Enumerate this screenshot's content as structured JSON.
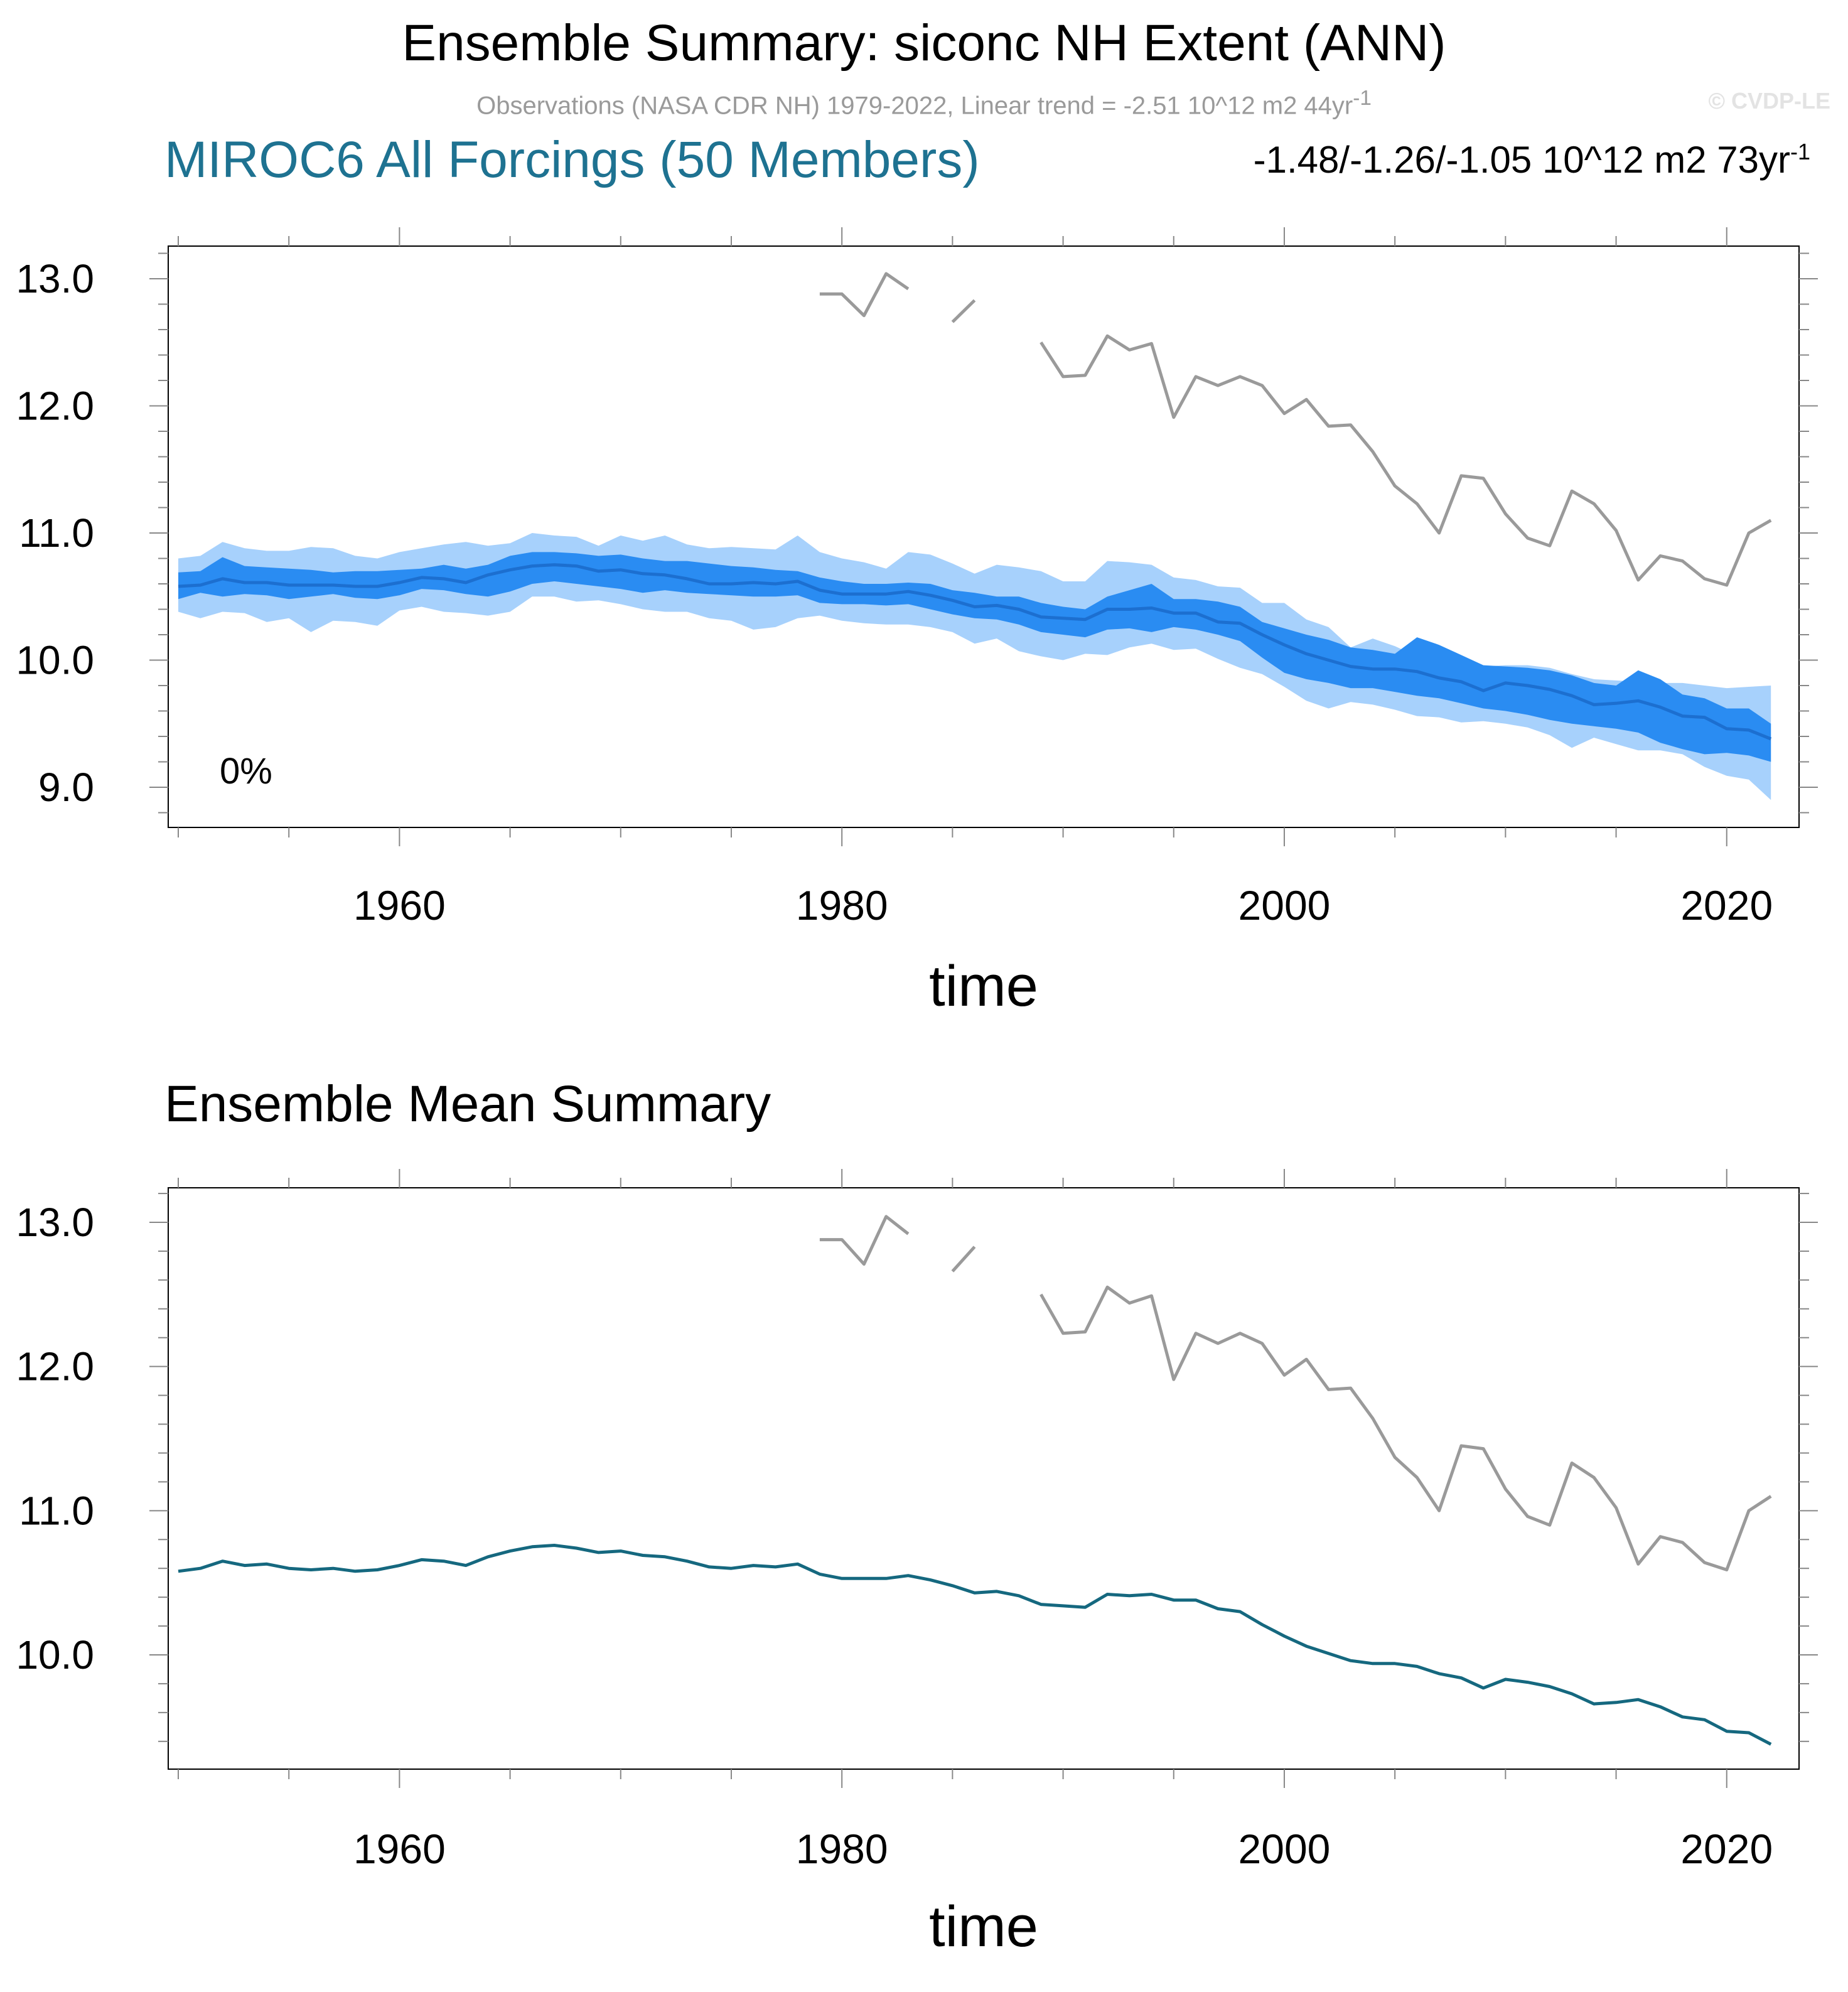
{
  "header": {
    "title": "Ensemble Summary: siconc NH Extent (ANN)",
    "observations_text": "Observations (NASA CDR NH) 1979-2022, Linear trend = -2.51 10^12 m2 44yr",
    "observations_sup": "-1",
    "copyright": "© CVDP-LE",
    "model_title": "MIROC6 All Forcings (50 Members)",
    "trend_text": "-1.48/-1.26/-1.05 10^12 m2 73yr",
    "trend_sup": "-1"
  },
  "colors": {
    "outer_band": "#a7d1fc",
    "inner_band": "#2a8cf2",
    "median_line": "#1c6fd0",
    "mean_line": "#15687f",
    "obs_line": "#9a9a9a",
    "model_title": "#1e7291"
  },
  "chart_data": [
    {
      "type": "area",
      "title": "Ensemble Summary",
      "xlabel": "time",
      "ylabel": "",
      "xlim": [
        1950,
        2022
      ],
      "ylim": [
        8.7,
        13.3
      ],
      "x_ticks": [
        1960,
        1980,
        2000,
        2020
      ],
      "y_ticks": [
        9.0,
        10.0,
        11.0,
        12.0,
        13.0
      ],
      "y_tick_labels": [
        "9.0",
        "10.0",
        "11.0",
        "12.0",
        "13.0"
      ],
      "annotation": "0%",
      "series": [
        {
          "name": "ensemble 5-95% range",
          "kind": "band-outer",
          "x_start": 1950,
          "upper": [
            10.8,
            10.82,
            10.93,
            10.88,
            10.86,
            10.86,
            10.89,
            10.88,
            10.82,
            10.8,
            10.85,
            10.88,
            10.91,
            10.93,
            10.9,
            10.92,
            11.0,
            10.98,
            10.97,
            10.9,
            10.98,
            10.94,
            10.98,
            10.91,
            10.88,
            10.89,
            10.88,
            10.87,
            10.98,
            10.85,
            10.8,
            10.77,
            10.72,
            10.85,
            10.83,
            10.76,
            10.68,
            10.75,
            10.73,
            10.7,
            10.62,
            10.62,
            10.78,
            10.77,
            10.75,
            10.65,
            10.63,
            10.58,
            10.57,
            10.45,
            10.45,
            10.32,
            10.26,
            10.1,
            10.17,
            10.11,
            10.03,
            10.0,
            9.98,
            9.95,
            9.96,
            9.96,
            9.94,
            9.89,
            9.85,
            9.84,
            9.83,
            9.82,
            9.82,
            9.8,
            9.78,
            9.79,
            9.8
          ],
          "lower": [
            10.38,
            10.33,
            10.38,
            10.37,
            10.3,
            10.33,
            10.22,
            10.31,
            10.3,
            10.27,
            10.39,
            10.42,
            10.38,
            10.37,
            10.35,
            10.38,
            10.5,
            10.5,
            10.46,
            10.47,
            10.44,
            10.4,
            10.38,
            10.38,
            10.33,
            10.31,
            10.24,
            10.26,
            10.33,
            10.35,
            10.31,
            10.29,
            10.28,
            10.28,
            10.26,
            10.22,
            10.13,
            10.17,
            10.07,
            10.03,
            10.0,
            10.05,
            10.04,
            10.1,
            10.13,
            10.08,
            10.09,
            10.01,
            9.94,
            9.89,
            9.79,
            9.68,
            9.62,
            9.67,
            9.65,
            9.61,
            9.56,
            9.55,
            9.51,
            9.52,
            9.5,
            9.47,
            9.41,
            9.31,
            9.39,
            9.34,
            9.29,
            9.29,
            9.26,
            9.16,
            9.09,
            9.06,
            8.9
          ]
        },
        {
          "name": "ensemble 25-75% range",
          "kind": "band-inner",
          "x_start": 1950,
          "upper": [
            10.69,
            10.7,
            10.81,
            10.74,
            10.73,
            10.72,
            10.71,
            10.69,
            10.7,
            10.7,
            10.71,
            10.72,
            10.75,
            10.72,
            10.75,
            10.82,
            10.85,
            10.85,
            10.84,
            10.82,
            10.83,
            10.8,
            10.78,
            10.78,
            10.76,
            10.74,
            10.73,
            10.71,
            10.7,
            10.65,
            10.62,
            10.6,
            10.6,
            10.61,
            10.6,
            10.55,
            10.53,
            10.5,
            10.5,
            10.45,
            10.42,
            10.4,
            10.5,
            10.55,
            10.6,
            10.48,
            10.48,
            10.46,
            10.42,
            10.3,
            10.25,
            10.2,
            10.16,
            10.1,
            10.08,
            10.05,
            10.18,
            10.12,
            10.04,
            9.96,
            9.95,
            9.94,
            9.92,
            9.88,
            9.82,
            9.8,
            9.92,
            9.85,
            9.73,
            9.7,
            9.62,
            9.62,
            9.5
          ],
          "lower": [
            10.48,
            10.53,
            10.5,
            10.52,
            10.51,
            10.48,
            10.5,
            10.52,
            10.49,
            10.48,
            10.51,
            10.56,
            10.55,
            10.52,
            10.5,
            10.54,
            10.6,
            10.62,
            10.6,
            10.58,
            10.56,
            10.53,
            10.55,
            10.53,
            10.52,
            10.51,
            10.5,
            10.5,
            10.51,
            10.45,
            10.44,
            10.44,
            10.43,
            10.44,
            10.4,
            10.36,
            10.33,
            10.32,
            10.28,
            10.22,
            10.2,
            10.18,
            10.24,
            10.25,
            10.22,
            10.26,
            10.24,
            10.2,
            10.15,
            10.02,
            9.9,
            9.85,
            9.82,
            9.78,
            9.78,
            9.75,
            9.72,
            9.7,
            9.66,
            9.62,
            9.6,
            9.57,
            9.53,
            9.5,
            9.48,
            9.46,
            9.43,
            9.35,
            9.3,
            9.26,
            9.27,
            9.25,
            9.2
          ]
        },
        {
          "name": "ensemble median",
          "kind": "line",
          "x_start": 1950,
          "values": [
            10.58,
            10.59,
            10.64,
            10.61,
            10.61,
            10.59,
            10.59,
            10.59,
            10.58,
            10.58,
            10.61,
            10.65,
            10.64,
            10.61,
            10.67,
            10.71,
            10.74,
            10.75,
            10.74,
            10.7,
            10.71,
            10.68,
            10.67,
            10.64,
            10.6,
            10.6,
            10.61,
            10.6,
            10.62,
            10.55,
            10.52,
            10.52,
            10.52,
            10.54,
            10.51,
            10.47,
            10.42,
            10.43,
            10.4,
            10.34,
            10.33,
            10.32,
            10.4,
            10.4,
            10.41,
            10.37,
            10.37,
            10.3,
            10.29,
            10.2,
            10.12,
            10.05,
            10.0,
            9.95,
            9.93,
            9.93,
            9.91,
            9.86,
            9.83,
            9.76,
            9.82,
            9.8,
            9.77,
            9.72,
            9.65,
            9.66,
            9.68,
            9.63,
            9.56,
            9.55,
            9.46,
            9.45,
            9.38
          ]
        },
        {
          "name": "Observations (NASA CDR NH)",
          "kind": "obs",
          "x": [
            1979,
            1980,
            1981,
            1982,
            1983,
            1984,
            1985,
            1986,
            1987,
            1988,
            1989,
            1990,
            1991,
            1992,
            1993,
            1994,
            1995,
            1996,
            1997,
            1998,
            1999,
            2000,
            2001,
            2002,
            2003,
            2004,
            2005,
            2006,
            2007,
            2008,
            2009,
            2010,
            2011,
            2012,
            2013,
            2014,
            2015,
            2016,
            2017,
            2018,
            2019,
            2020,
            2021,
            2022
          ],
          "values": [
            12.88,
            12.88,
            12.71,
            13.04,
            12.92,
            null,
            12.66,
            12.83,
            null,
            null,
            12.5,
            12.23,
            12.24,
            12.55,
            12.44,
            12.49,
            11.91,
            12.23,
            12.16,
            12.23,
            12.16,
            11.94,
            12.05,
            11.84,
            11.85,
            11.64,
            11.37,
            11.23,
            11.0,
            11.45,
            11.43,
            11.15,
            10.96,
            10.9,
            11.33,
            11.23,
            11.02,
            10.63,
            10.82,
            10.78,
            10.64,
            10.59,
            11.0,
            11.1
          ]
        }
      ]
    },
    {
      "type": "line",
      "title": "Ensemble Mean Summary",
      "xlabel": "time",
      "ylabel": "",
      "xlim": [
        1950,
        2022
      ],
      "ylim": [
        9.2,
        13.2
      ],
      "x_ticks": [
        1960,
        1980,
        2000,
        2020
      ],
      "y_ticks": [
        10.0,
        11.0,
        12.0,
        13.0
      ],
      "y_tick_labels": [
        "10.0",
        "11.0",
        "12.0",
        "13.0"
      ],
      "series": [
        {
          "name": "ensemble mean",
          "kind": "mean",
          "x_start": 1950,
          "values": [
            10.58,
            10.6,
            10.65,
            10.62,
            10.63,
            10.6,
            10.59,
            10.6,
            10.58,
            10.59,
            10.62,
            10.66,
            10.65,
            10.62,
            10.68,
            10.72,
            10.75,
            10.76,
            10.74,
            10.71,
            10.72,
            10.69,
            10.68,
            10.65,
            10.61,
            10.6,
            10.62,
            10.61,
            10.63,
            10.56,
            10.53,
            10.53,
            10.53,
            10.55,
            10.52,
            10.48,
            10.43,
            10.44,
            10.41,
            10.35,
            10.34,
            10.33,
            10.42,
            10.41,
            10.42,
            10.38,
            10.38,
            10.32,
            10.3,
            10.21,
            10.13,
            10.06,
            10.01,
            9.96,
            9.94,
            9.94,
            9.92,
            9.87,
            9.84,
            9.77,
            9.83,
            9.81,
            9.78,
            9.73,
            9.66,
            9.67,
            9.69,
            9.64,
            9.57,
            9.55,
            9.47,
            9.46,
            9.38
          ]
        },
        {
          "name": "Observations (NASA CDR NH)",
          "kind": "obs",
          "x": [
            1979,
            1980,
            1981,
            1982,
            1983,
            1984,
            1985,
            1986,
            1987,
            1988,
            1989,
            1990,
            1991,
            1992,
            1993,
            1994,
            1995,
            1996,
            1997,
            1998,
            1999,
            2000,
            2001,
            2002,
            2003,
            2004,
            2005,
            2006,
            2007,
            2008,
            2009,
            2010,
            2011,
            2012,
            2013,
            2014,
            2015,
            2016,
            2017,
            2018,
            2019,
            2020,
            2021,
            2022
          ],
          "values": [
            12.88,
            12.88,
            12.71,
            13.04,
            12.92,
            null,
            12.66,
            12.83,
            null,
            null,
            12.5,
            12.23,
            12.24,
            12.55,
            12.44,
            12.49,
            11.91,
            12.23,
            12.16,
            12.23,
            12.16,
            11.94,
            12.05,
            11.84,
            11.85,
            11.64,
            11.37,
            11.23,
            11.0,
            11.45,
            11.43,
            11.15,
            10.96,
            10.9,
            11.33,
            11.23,
            11.02,
            10.63,
            10.82,
            10.78,
            10.64,
            10.59,
            11.0,
            11.1
          ]
        }
      ]
    }
  ]
}
